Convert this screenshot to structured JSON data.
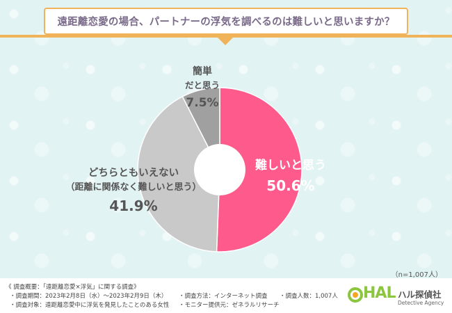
{
  "title": "遠距離恋愛の場合、パートナーの浮気を調べるのは難しいと思いますか？",
  "chart_data": {
    "type": "pie",
    "slices": [
      {
        "label": "難しいと思う",
        "sublabel": "",
        "value": 50.6,
        "value_label": "50.6%",
        "color": "#ff5a8c"
      },
      {
        "label": "どちらともいえない",
        "sublabel": "（距離に関係なく難しいと思う）",
        "value": 41.9,
        "value_label": "41.9%",
        "color": "#c9c9c9"
      },
      {
        "label": "簡単",
        "sublabel": "だと思う",
        "value": 7.5,
        "value_label": "7.5%",
        "color": "#a0a0a0"
      }
    ],
    "center_hole": true
  },
  "n_note": "（n=1,007人）",
  "footer": {
    "header": "《 調査概要：「遠距離恋愛×浮気」に関する調査》",
    "period": "・調査期間：2023年2月8日（水）～2023年2月9日（木）",
    "method": "・調査方法：インターネット調査",
    "count": "・調査人数：1,007人",
    "target": "・調査対象：遠距離恋愛中に浮気を発見したことのある女性",
    "provider": "・モニター提供元：ゼネラルリサーチ"
  },
  "logo": {
    "mark": "HAL",
    "name": "ハル探偵社",
    "sub": "Detective Agency"
  }
}
